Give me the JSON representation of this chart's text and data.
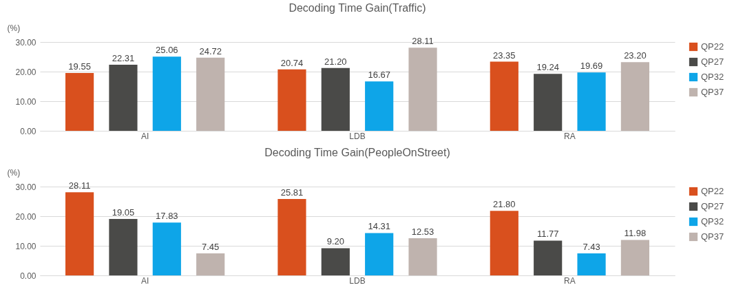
{
  "chart_data": [
    {
      "type": "bar",
      "title": "Decoding Time Gain(Traffic)",
      "ylabel": "(%)",
      "categories": [
        "AI",
        "LDB",
        "RA"
      ],
      "series": [
        {
          "name": "QP22",
          "color": "#d9501e",
          "values": [
            19.55,
            20.74,
            23.35
          ],
          "value_labels": [
            "19.55",
            "20.74",
            "23.35"
          ]
        },
        {
          "name": "QP27",
          "color": "#4a4a48",
          "values": [
            22.31,
            21.2,
            19.24
          ],
          "value_labels": [
            "22.31",
            "21.20",
            "19.24"
          ]
        },
        {
          "name": "QP32",
          "color": "#0ea5e8",
          "values": [
            25.06,
            16.67,
            19.69
          ],
          "value_labels": [
            "25.06",
            "16.67",
            "19.69"
          ]
        },
        {
          "name": "QP37",
          "color": "#bfb3ae",
          "values": [
            24.72,
            28.11,
            23.2
          ],
          "value_labels": [
            "24.72",
            "28.11",
            "23.20"
          ]
        }
      ],
      "ylim": [
        0,
        30
      ],
      "yticks": [
        {
          "value": 0,
          "label": "0.00"
        },
        {
          "value": 10,
          "label": "10.00"
        },
        {
          "value": 20,
          "label": "20.00"
        },
        {
          "value": 30,
          "label": "30.00"
        }
      ],
      "grid": "y",
      "legend": "right"
    },
    {
      "type": "bar",
      "title": "Decoding Time Gain(PeopleOnStreet)",
      "ylabel": "(%)",
      "categories": [
        "AI",
        "LDB",
        "RA"
      ],
      "series": [
        {
          "name": "QP22",
          "color": "#d9501e",
          "values": [
            28.11,
            25.81,
            21.8
          ],
          "value_labels": [
            "28.11",
            "25.81",
            "21.80"
          ]
        },
        {
          "name": "QP27",
          "color": "#4a4a48",
          "values": [
            19.05,
            9.2,
            11.77
          ],
          "value_labels": [
            "19.05",
            "9.20",
            "11.77"
          ]
        },
        {
          "name": "QP32",
          "color": "#0ea5e8",
          "values": [
            17.83,
            14.31,
            7.43
          ],
          "value_labels": [
            "17.83",
            "14.31",
            "7.43"
          ]
        },
        {
          "name": "QP37",
          "color": "#bfb3ae",
          "values": [
            7.45,
            12.53,
            11.98
          ],
          "value_labels": [
            "7.45",
            "12.53",
            "11.98"
          ]
        }
      ],
      "ylim": [
        0,
        30
      ],
      "yticks": [
        {
          "value": 0,
          "label": "0.00"
        },
        {
          "value": 10,
          "label": "10.00"
        },
        {
          "value": 20,
          "label": "20.00"
        },
        {
          "value": 30,
          "label": "30.00"
        }
      ],
      "grid": "y",
      "legend": "right"
    }
  ]
}
